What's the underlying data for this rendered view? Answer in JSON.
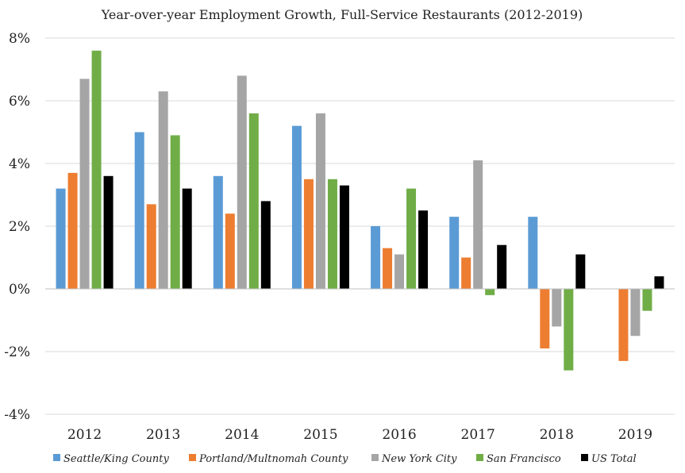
{
  "chart_data": {
    "type": "bar",
    "title": "Year-over-year Employment Growth, Full-Service Restaurants (2012-2019)",
    "xlabel": "",
    "ylabel": "",
    "ylim": [
      -4,
      8
    ],
    "yticks": [
      -4,
      -2,
      0,
      2,
      4,
      6,
      8
    ],
    "ytick_labels": [
      "-4%",
      "-2%",
      "0%",
      "2%",
      "4%",
      "6%",
      "8%"
    ],
    "categories": [
      "2012",
      "2013",
      "2014",
      "2015",
      "2016",
      "2017",
      "2018",
      "2019"
    ],
    "grid": true,
    "legend_position": "bottom",
    "series": [
      {
        "name": "Seattle/King County",
        "color": "#5b9bd5",
        "values": [
          3.2,
          5.0,
          3.6,
          5.2,
          2.0,
          2.3,
          2.3,
          null
        ]
      },
      {
        "name": "Portland/Multnomah County",
        "color": "#ed7d31",
        "values": [
          3.7,
          2.7,
          2.4,
          3.5,
          1.3,
          1.0,
          -1.9,
          -2.3
        ]
      },
      {
        "name": "New York City",
        "color": "#a5a5a5",
        "values": [
          6.7,
          6.3,
          6.8,
          5.6,
          1.1,
          4.1,
          -1.2,
          -1.5
        ]
      },
      {
        "name": "San Francisco",
        "color": "#70ad47",
        "values": [
          7.6,
          4.9,
          5.6,
          3.5,
          3.2,
          -0.2,
          -2.6,
          -0.7
        ]
      },
      {
        "name": "US Total",
        "color": "#000000",
        "values": [
          3.6,
          3.2,
          2.8,
          3.3,
          2.5,
          1.4,
          1.1,
          0.4
        ]
      }
    ]
  }
}
